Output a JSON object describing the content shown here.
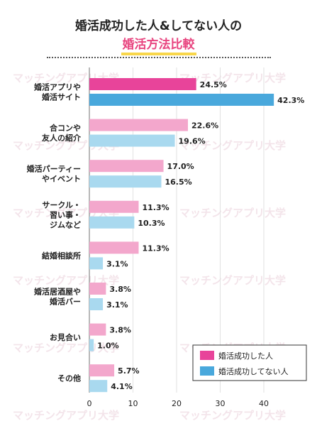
{
  "title": {
    "line1": "婚活成功した人&してない人の",
    "line2": "婚活方法比較"
  },
  "colors": {
    "success": "#e8449a",
    "not_success": "#49a8dc",
    "success_light": "#f3a7cc",
    "not_success_light": "#a9d9ef"
  },
  "chart_data": {
    "type": "bar",
    "orientation": "horizontal",
    "categories": [
      [
        "婚活アプリや",
        "婚活サイト"
      ],
      [
        "合コンや",
        "友人の紹介"
      ],
      [
        "婚活パーティー",
        "やイベント"
      ],
      [
        "サークル・",
        "習い事・",
        "ジムなど"
      ],
      [
        "結婚相談所"
      ],
      [
        "婚活居酒屋や",
        "婚活バー"
      ],
      [
        "お見合い"
      ],
      [
        "その他"
      ]
    ],
    "series": [
      {
        "name": "婚活成功した人",
        "values": [
          24.5,
          22.6,
          17.0,
          11.3,
          11.3,
          3.8,
          3.8,
          5.7
        ]
      },
      {
        "name": "婚活成功してない人",
        "values": [
          42.3,
          19.6,
          16.5,
          10.3,
          3.1,
          3.1,
          1.0,
          4.1
        ]
      }
    ],
    "value_labels": [
      [
        "24.5%",
        "22.6%",
        "17.0%",
        "11.3%",
        "11.3%",
        "3.8%",
        "3.8%",
        "5.7%"
      ],
      [
        "42.3%",
        "19.6%",
        "16.5%",
        "10.3%",
        "3.1%",
        "3.1%",
        "1.0%",
        "4.1%"
      ]
    ],
    "xlim": [
      0,
      45
    ],
    "xticks": [
      "0",
      "10",
      "20",
      "30",
      "40"
    ],
    "grid": true,
    "legend": "bottom-right",
    "highlight_category": 0
  },
  "watermark": "マッチングアプリ大学"
}
